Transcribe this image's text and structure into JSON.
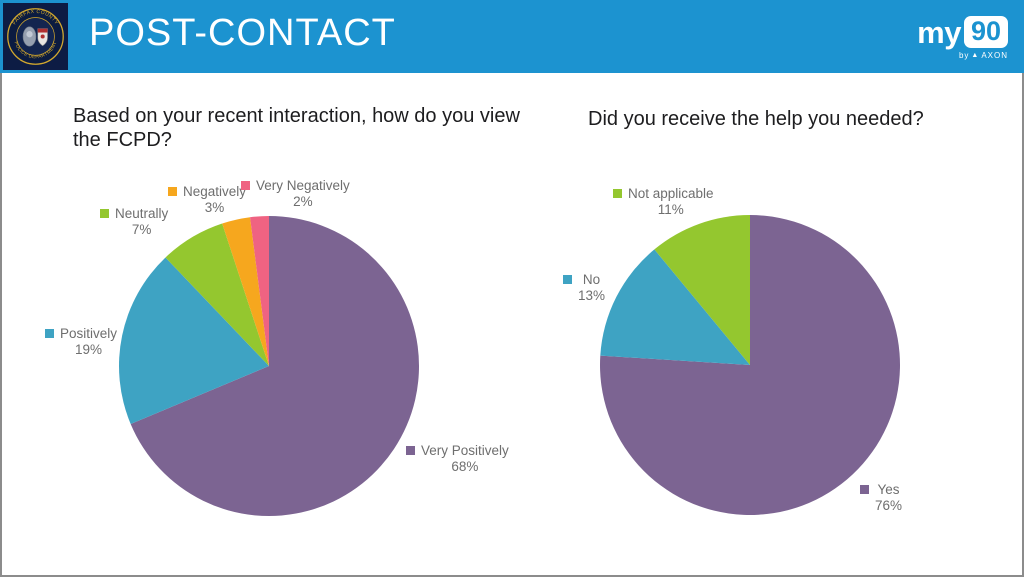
{
  "header": {
    "title": "POST-CONTACT",
    "seal": {
      "top_text": "FAIRFAX COUNTY",
      "bottom_text": "POLICE DEPARTMENT"
    },
    "brand": {
      "prefix": "my",
      "suffix": "90",
      "byline_prefix": "by",
      "byline_brand": "AXON"
    },
    "colors": {
      "bar": "#1C93D0",
      "seal_bg": "#0D1C44",
      "seal_gold": "#D2A82E"
    }
  },
  "page": {
    "border_color": "#8C8C8C"
  },
  "chart_data": [
    {
      "type": "pie",
      "title": "Based on your recent interaction, how do you view the FCPD?",
      "categories": [
        "Very Positively",
        "Positively",
        "Neutrally",
        "Negatively",
        "Very Negatively"
      ],
      "values": [
        68,
        19,
        7,
        3,
        2
      ],
      "value_labels": [
        "68%",
        "19%",
        "7%",
        "3%",
        "2%"
      ],
      "colors": [
        "#7C6492",
        "#3EA3C3",
        "#94C72F",
        "#F6A71E",
        "#EF6382"
      ],
      "start_angle_deg": 0,
      "direction": "clockwise",
      "legend_position": "outside-slices"
    },
    {
      "type": "pie",
      "title": "Did you receive the help you needed?",
      "categories": [
        "Yes",
        "No",
        "Not applicable"
      ],
      "values": [
        76,
        13,
        11
      ],
      "value_labels": [
        "76%",
        "13%",
        "11%"
      ],
      "colors": [
        "#7C6492",
        "#3EA3C3",
        "#94C72F"
      ],
      "start_angle_deg": 0,
      "direction": "clockwise",
      "legend_position": "outside-slices"
    }
  ]
}
